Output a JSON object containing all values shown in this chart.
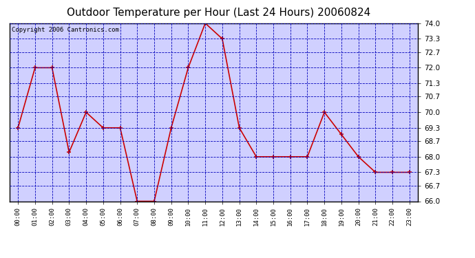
{
  "title": "Outdoor Temperature per Hour (Last 24 Hours) 20060824",
  "copyright": "Copyright 2006 Cantronics.com",
  "hours": [
    "00:00",
    "01:00",
    "02:00",
    "03:00",
    "04:00",
    "05:00",
    "06:00",
    "07:00",
    "08:00",
    "09:00",
    "10:00",
    "11:00",
    "12:00",
    "13:00",
    "14:00",
    "15:00",
    "16:00",
    "17:00",
    "18:00",
    "19:00",
    "20:00",
    "21:00",
    "22:00",
    "23:00"
  ],
  "temps": [
    69.3,
    72.0,
    72.0,
    68.2,
    70.0,
    69.3,
    69.3,
    66.0,
    66.0,
    69.3,
    72.0,
    74.0,
    73.3,
    69.3,
    68.0,
    68.0,
    68.0,
    68.0,
    70.0,
    69.0,
    68.0,
    67.3,
    67.3,
    67.3
  ],
  "ylim": [
    66.0,
    74.0
  ],
  "yticks": [
    66.0,
    66.7,
    67.3,
    68.0,
    68.7,
    69.3,
    70.0,
    70.7,
    71.3,
    72.0,
    72.7,
    73.3,
    74.0
  ],
  "line_color": "#cc0000",
  "marker_color": "#cc0000",
  "bg_color": "#ffffff",
  "plot_bg_color": "#d0d0ff",
  "grid_color": "#0000bb",
  "border_color": "#000000",
  "title_fontsize": 11,
  "copyright_fontsize": 6.5
}
